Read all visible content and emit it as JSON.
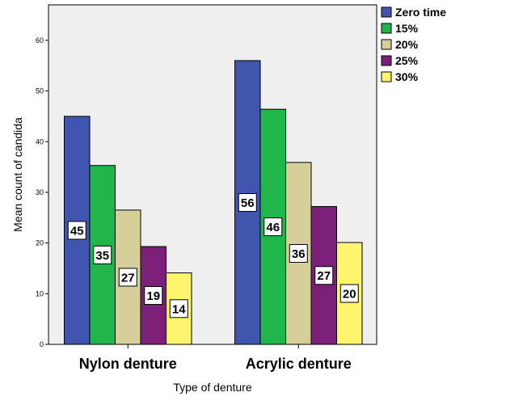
{
  "chart_data": {
    "type": "bar",
    "categories": [
      "Nylon denture",
      "Acrylic denture"
    ],
    "series": [
      {
        "name": "Zero time",
        "values": [
          45,
          56
        ],
        "labels": [
          "45",
          "56"
        ],
        "color": "#3f55ae"
      },
      {
        "name": "15%",
        "values": [
          35.3,
          46.4
        ],
        "labels": [
          "35",
          "46"
        ],
        "color": "#21b64a"
      },
      {
        "name": "20%",
        "values": [
          26.5,
          35.9
        ],
        "labels": [
          "27",
          "36"
        ],
        "color": "#d6cf9a"
      },
      {
        "name": "25%",
        "values": [
          19.3,
          27.2
        ],
        "labels": [
          "19",
          "27"
        ],
        "color": "#7b1f79"
      },
      {
        "name": "30%",
        "values": [
          14.1,
          20.1
        ],
        "labels": [
          "14",
          "20"
        ],
        "color": "#fcf56d"
      }
    ],
    "yticks": [
      0,
      10,
      20,
      30,
      40,
      50,
      60
    ],
    "ylim": [
      0,
      67
    ],
    "xlabel": "Type of denture",
    "ylabel": "Mean count of candida",
    "legend_position": "top-right",
    "grid": false,
    "plot_background": "#efefef"
  }
}
